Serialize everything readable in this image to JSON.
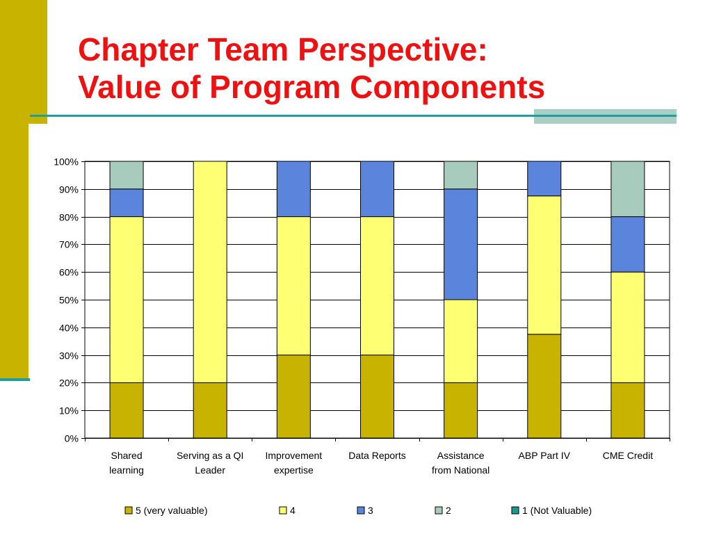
{
  "slide": {
    "title_line1": "Chapter Team Perspective:",
    "title_line2": "Value of Program Components",
    "title_color": "#ee1111",
    "accent_color": "#c8b400",
    "line_color": "#1f9e9e"
  },
  "chart_data": {
    "type": "bar",
    "stacked": true,
    "percent": true,
    "categories": [
      [
        "Shared",
        "learning"
      ],
      [
        "Serving as a QI",
        "Leader"
      ],
      [
        "Improvement",
        "expertise"
      ],
      [
        "Data Reports"
      ],
      [
        "Assistance",
        "from National"
      ],
      [
        "ABP Part IV"
      ],
      [
        "CME Credit"
      ]
    ],
    "series": [
      {
        "name": "5 (very valuable)",
        "color": "#c8b400",
        "values": [
          20,
          20,
          30,
          30,
          20,
          37.5,
          20
        ]
      },
      {
        "name": "4",
        "color": "#ffff73",
        "values": [
          60,
          80,
          50,
          50,
          30,
          50,
          40
        ]
      },
      {
        "name": "3",
        "color": "#5b85dc",
        "values": [
          10,
          0,
          20,
          20,
          40,
          12.5,
          20
        ]
      },
      {
        "name": "2",
        "color": "#a7cbbd",
        "values": [
          10,
          0,
          0,
          0,
          10,
          0,
          20
        ]
      },
      {
        "name": "1 (Not Valuable)",
        "color": "#1a9a93",
        "values": [
          0,
          0,
          0,
          0,
          0,
          0,
          0
        ]
      }
    ],
    "yticks": [
      "0%",
      "10%",
      "20%",
      "30%",
      "40%",
      "50%",
      "60%",
      "70%",
      "80%",
      "90%",
      "100%"
    ],
    "ylim": [
      0,
      100
    ],
    "grid": true,
    "legend_position": "bottom"
  }
}
